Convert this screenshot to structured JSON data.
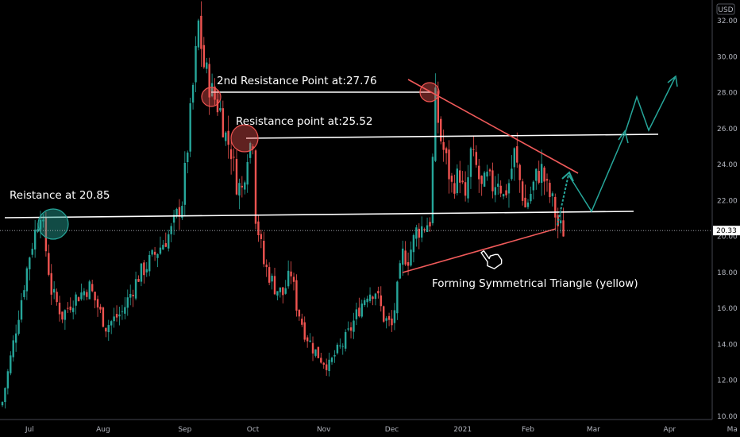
{
  "chart_data": {
    "type": "candlestick",
    "currency": "USD",
    "last_price_label": "20.33",
    "last_price": 20.33,
    "ylim": [
      10,
      32.8
    ],
    "y_ticks": [
      {
        "value": 10,
        "label": "10.00"
      },
      {
        "value": 12,
        "label": "12.00"
      },
      {
        "value": 14,
        "label": "14.00"
      },
      {
        "value": 16,
        "label": "16.00"
      },
      {
        "value": 18,
        "label": "18.00"
      },
      {
        "value": 20,
        "label": "20.00"
      },
      {
        "value": 22,
        "label": "22.00"
      },
      {
        "value": 24,
        "label": "24.00"
      },
      {
        "value": 26,
        "label": "26.00"
      },
      {
        "value": 28,
        "label": "28.00"
      },
      {
        "value": 30,
        "label": "30.00"
      },
      {
        "value": 32,
        "label": "32.00"
      }
    ],
    "x_ticks": [
      {
        "label": "Jul",
        "bar": 10
      },
      {
        "label": "Aug",
        "bar": 37
      },
      {
        "label": "Sep",
        "bar": 67
      },
      {
        "label": "Oct",
        "bar": 92
      },
      {
        "label": "Nov",
        "bar": 118
      },
      {
        "label": "Dec",
        "bar": 143
      },
      {
        "label": "2021",
        "bar": 169
      },
      {
        "label": "Feb",
        "bar": 193
      },
      {
        "label": "Mar",
        "bar": 217
      },
      {
        "label": "Apr",
        "bar": 245
      },
      {
        "label": "Ma",
        "bar": 268
      }
    ],
    "close_path": [
      [
        0,
        10.8
      ],
      [
        10,
        19
      ],
      [
        14,
        21.5
      ],
      [
        18,
        17
      ],
      [
        22,
        15.6
      ],
      [
        26,
        16.5
      ],
      [
        32,
        17.2
      ],
      [
        38,
        15
      ],
      [
        44,
        15.8
      ],
      [
        50,
        17.8
      ],
      [
        56,
        19
      ],
      [
        62,
        20.3
      ],
      [
        66,
        22
      ],
      [
        68,
        25
      ],
      [
        71,
        30
      ],
      [
        72,
        31.8
      ],
      [
        74,
        29.5
      ],
      [
        77,
        28
      ],
      [
        80,
        27
      ],
      [
        82,
        25.6
      ],
      [
        84,
        24.8
      ],
      [
        86,
        23
      ],
      [
        88,
        22.6
      ],
      [
        90,
        24.8
      ],
      [
        92,
        25.5
      ],
      [
        93,
        21.2
      ],
      [
        96,
        18.5
      ],
      [
        100,
        17.2
      ],
      [
        103,
        16.8
      ],
      [
        106,
        18
      ],
      [
        108,
        16.2
      ],
      [
        111,
        14.7
      ],
      [
        114,
        13.8
      ],
      [
        117,
        13.2
      ],
      [
        120,
        12.8
      ],
      [
        122,
        13.4
      ],
      [
        125,
        14
      ],
      [
        128,
        14.9
      ],
      [
        131,
        16
      ],
      [
        134,
        16.9
      ],
      [
        137,
        17
      ],
      [
        140,
        15.5
      ],
      [
        143,
        15
      ],
      [
        145,
        17
      ],
      [
        147,
        19
      ],
      [
        149,
        18.8
      ],
      [
        152,
        20.3
      ],
      [
        155,
        20.6
      ],
      [
        157,
        20.9
      ],
      [
        159,
        27.5
      ],
      [
        161,
        25.4
      ],
      [
        163,
        24.2
      ],
      [
        165,
        22.8
      ],
      [
        168,
        23.5
      ],
      [
        170,
        21.8
      ],
      [
        172,
        24.6
      ],
      [
        174,
        23.8
      ],
      [
        176,
        22.6
      ],
      [
        178,
        23.2
      ],
      [
        180,
        22.8
      ],
      [
        182,
        23.3
      ],
      [
        184,
        22.2
      ],
      [
        186,
        23
      ],
      [
        188,
        24.6
      ],
      [
        190,
        23.1
      ],
      [
        192,
        21.6
      ],
      [
        194,
        22.4
      ],
      [
        196,
        23.3
      ],
      [
        198,
        23.7
      ],
      [
        200,
        22.6
      ],
      [
        202,
        21.9
      ],
      [
        204,
        20.6
      ],
      [
        206,
        20.33
      ]
    ],
    "annotations": {
      "resistance_1_label": "Reistance at 20.85",
      "resistance_2_label": "Resistance point at:25.52",
      "resistance_3_label": "2nd Resistance Point at:27.76",
      "triangle_label": "Forming Symmetrical Triangle (yellow)"
    },
    "colors": {
      "background": "#000000",
      "up_candle": "#26a69a",
      "down_candle": "#ef5350",
      "annotation_line": "#ffffff",
      "trend_line": "#f05a5a",
      "projection_arrow": "#26a69a",
      "axis_text": "#b2b5be",
      "price_label_bg": "#ffffff"
    }
  }
}
